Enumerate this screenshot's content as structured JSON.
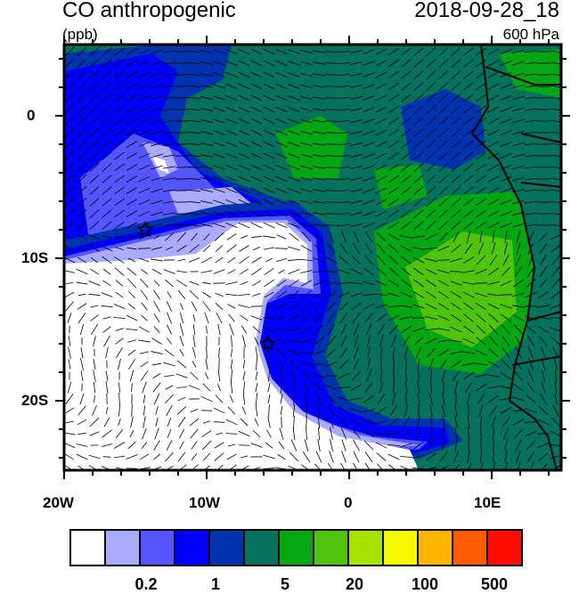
{
  "header": {
    "title": "CO anthropogenic",
    "units": "(ppb)",
    "datetime": "2018-09-28_18",
    "level": "600 hPa"
  },
  "map": {
    "lon_range": [
      -20,
      15
    ],
    "lat_range": [
      -25,
      5
    ],
    "x_tick_labels": [
      "20W",
      "10W",
      "0",
      "10E"
    ],
    "y_tick_labels": [
      "0",
      "10S",
      "20S"
    ],
    "markers": [
      {
        "type": "star",
        "lon": -14.3,
        "lat": -8
      },
      {
        "type": "star",
        "lon": -5.7,
        "lat": -16
      }
    ],
    "overlay": "wind vectors"
  },
  "colorbar": {
    "colors": [
      "#ffffff",
      "#aaaaff",
      "#5555ff",
      "#0000ff",
      "#0033b0",
      "#06725c",
      "#04a614",
      "#50c40c",
      "#a6e400",
      "#f4f800",
      "#ffb400",
      "#ff5a00",
      "#ff0d00"
    ],
    "labels": [
      "0.2",
      "1",
      "5",
      "20",
      "100",
      "500"
    ]
  }
}
